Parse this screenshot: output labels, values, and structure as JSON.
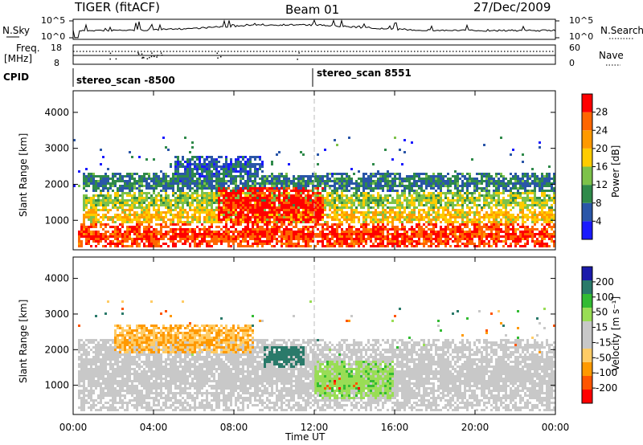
{
  "header": {
    "radar": "TIGER (fitACF)",
    "beam": "Beam 01",
    "date": "27/Dec/2009"
  },
  "strips": {
    "nsky_label": "N.Sky",
    "nsky_ticks": [
      "10^5",
      "10^0"
    ],
    "nsearch_label": "N.Search",
    "nsearch_ticks": [
      "10^5",
      "10^0"
    ],
    "freq_label_1": "Freq.",
    "freq_label_2": "[MHz]",
    "freq_ticks": [
      "18",
      "8"
    ],
    "nave_label": "Nave",
    "nave_ticks": [
      "60",
      "0"
    ],
    "cpid_label": "CPID",
    "cpid_1": "stereo_scan -8500",
    "cpid_2": "stereo_scan 8551"
  },
  "panels": {
    "y_label": "Slant Range [km]",
    "y_ticks": [
      "1000",
      "2000",
      "3000",
      "4000"
    ],
    "x_ticks": [
      "00:00",
      "04:00",
      "08:00",
      "12:00",
      "16:00",
      "20:00",
      "00:00"
    ],
    "x_label": "Time UT",
    "power_label": "Power [dB]",
    "power_ticks": [
      "4",
      "8",
      "12",
      "16",
      "20",
      "24",
      "28"
    ],
    "velocity_label": "Velocity [m s⁻¹]",
    "velocity_ticks": [
      "-200",
      "-100",
      "-50",
      "-15",
      "15",
      "50",
      "100",
      "200"
    ]
  },
  "chart_data": [
    {
      "type": "heatmap",
      "title": "Power",
      "xlabel": "Time UT",
      "ylabel": "Slant Range [km]",
      "xlim_hours": [
        0,
        24
      ],
      "ylim": [
        180,
        4600
      ],
      "colorbar": {
        "label": "Power [dB]",
        "range": [
          0,
          30
        ],
        "ticks": [
          4,
          8,
          12,
          16,
          20,
          24,
          28
        ]
      },
      "bands": [
        {
          "t_start": 0.2,
          "t_end": 24,
          "r_low": 250,
          "r_high": 900,
          "value": 26
        },
        {
          "t_start": 0.5,
          "t_end": 24,
          "r_low": 900,
          "r_high": 1300,
          "value": 18
        },
        {
          "t_start": 0.5,
          "t_end": 24,
          "r_low": 1300,
          "r_high": 1800,
          "value": 14
        },
        {
          "t_start": 0.5,
          "t_end": 24,
          "r_low": 1800,
          "r_high": 2300,
          "value": 8
        },
        {
          "t_start": 7.2,
          "t_end": 12.5,
          "r_low": 900,
          "r_high": 1900,
          "value": 28
        },
        {
          "t_start": 5,
          "t_end": 9.5,
          "r_low": 2200,
          "r_high": 2800,
          "value": 6
        }
      ]
    },
    {
      "type": "heatmap",
      "title": "Velocity",
      "xlabel": "Time UT",
      "ylabel": "Slant Range [km]",
      "xlim_hours": [
        0,
        24
      ],
      "ylim": [
        180,
        4600
      ],
      "colorbar": {
        "label": "Velocity [m s⁻¹]",
        "ticks": [
          -200,
          -100,
          -50,
          -15,
          15,
          50,
          100,
          200
        ]
      },
      "bands": [
        {
          "t_start": 0.2,
          "t_end": 24,
          "r_low": 250,
          "r_high": 2300,
          "value": 0
        },
        {
          "t_start": 9.5,
          "t_end": 11.5,
          "r_low": 1500,
          "r_high": 2100,
          "value": 150
        },
        {
          "t_start": 12.3,
          "t_end": 14.5,
          "r_low": 900,
          "r_high": 1200,
          "value": -200
        },
        {
          "t_start": 12,
          "t_end": 16,
          "r_low": 600,
          "r_high": 1700,
          "value": 40
        },
        {
          "t_start": 2,
          "t_end": 9,
          "r_low": 1900,
          "r_high": 2700,
          "value": -50
        }
      ]
    }
  ],
  "colors": {
    "power_scale": [
      "#1a1aff",
      "#2a56a8",
      "#2f8a4a",
      "#7dc24a",
      "#ffcc00",
      "#ff9900",
      "#ff6600",
      "#ff0000"
    ],
    "velocity_scale": [
      "#ff0000",
      "#ff5500",
      "#ff9900",
      "#ffcc66",
      "#c8c8c8",
      "#c8c8c8",
      "#99dd55",
      "#33bb33",
      "#2a7a6a",
      "#1a1aaa"
    ]
  }
}
